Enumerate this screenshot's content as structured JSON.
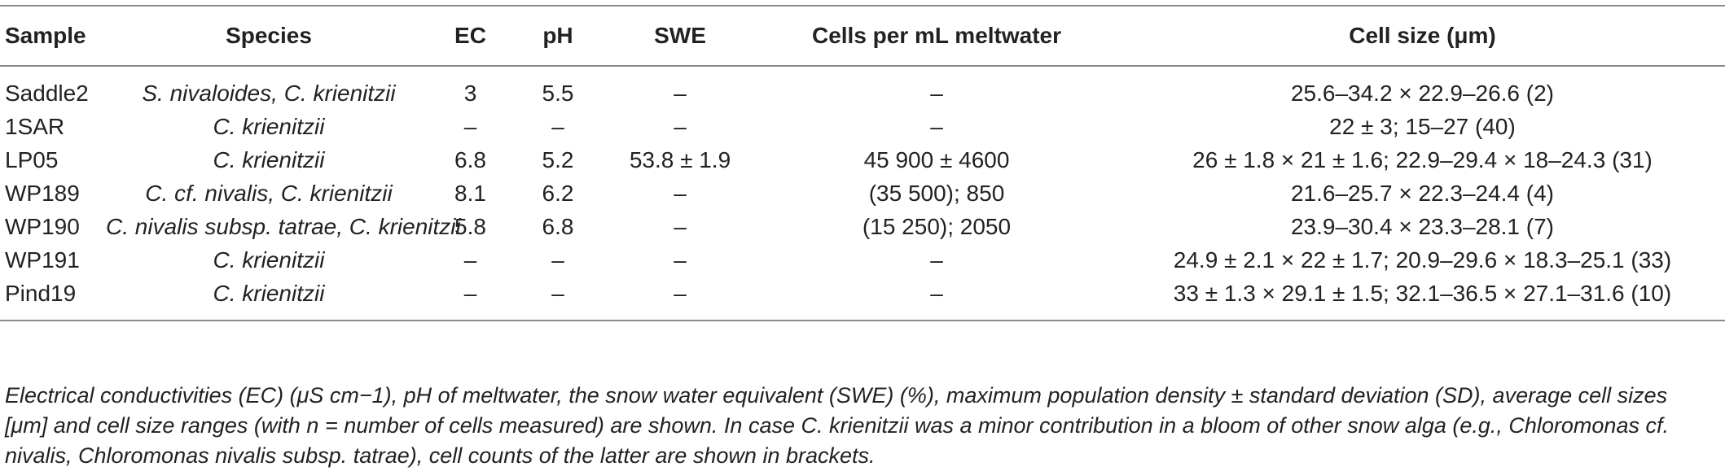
{
  "table": {
    "headers": [
      "Sample",
      "Species",
      "EC",
      "pH",
      "SWE",
      "Cells per mL meltwater",
      "Cell size (μm)"
    ],
    "rows": [
      [
        "Saddle2",
        "S. nivaloides, C. krienitzii",
        "3",
        "5.5",
        "–",
        "–",
        "25.6–34.2 × 22.9–26.6 (2)"
      ],
      [
        "1SAR",
        "C. krienitzii",
        "–",
        "–",
        "–",
        "–",
        "22 ± 3; 15–27 (40)"
      ],
      [
        "LP05",
        "C. krienitzii",
        "6.8",
        "5.2",
        "53.8 ± 1.9",
        "45 900 ± 4600",
        "26 ± 1.8 × 21 ± 1.6; 22.9–29.4 × 18–24.3 (31)"
      ],
      [
        "WP189",
        "C. cf. nivalis, C. krienitzii",
        "8.1",
        "6.2",
        "–",
        "(35 500); 850",
        "21.6–25.7 × 22.3–24.4 (4)"
      ],
      [
        "WP190",
        "C. nivalis subsp. tatrae, C. krienitzii",
        "5.8",
        "6.8",
        "–",
        "(15 250); 2050",
        "23.9–30.4 × 23.3–28.1 (7)"
      ],
      [
        "WP191",
        "C. krienitzii",
        "–",
        "–",
        "–",
        "–",
        "24.9 ± 2.1 × 22 ± 1.7; 20.9–29.6 × 18.3–25.1 (33)"
      ],
      [
        "Pind19",
        "C. krienitzii",
        "–",
        "–",
        "–",
        "–",
        "33 ± 1.3 × 29.1 ± 1.5; 32.1–36.5 × 27.1–31.6 (10)"
      ]
    ]
  },
  "footnote": "Electrical conductivities (EC) (μS cm−1), pH of meltwater, the snow water equivalent (SWE) (%), maximum population density ± standard deviation (SD), average cell sizes [μm] and cell size ranges (with n = number of cells measured) are shown. In case C. krienitzii was a minor contribution in a bloom of other snow alga (e.g., Chloromonas cf. nivalis, Chloromonas nivalis subsp. tatrae), cell counts of the latter are shown in brackets."
}
